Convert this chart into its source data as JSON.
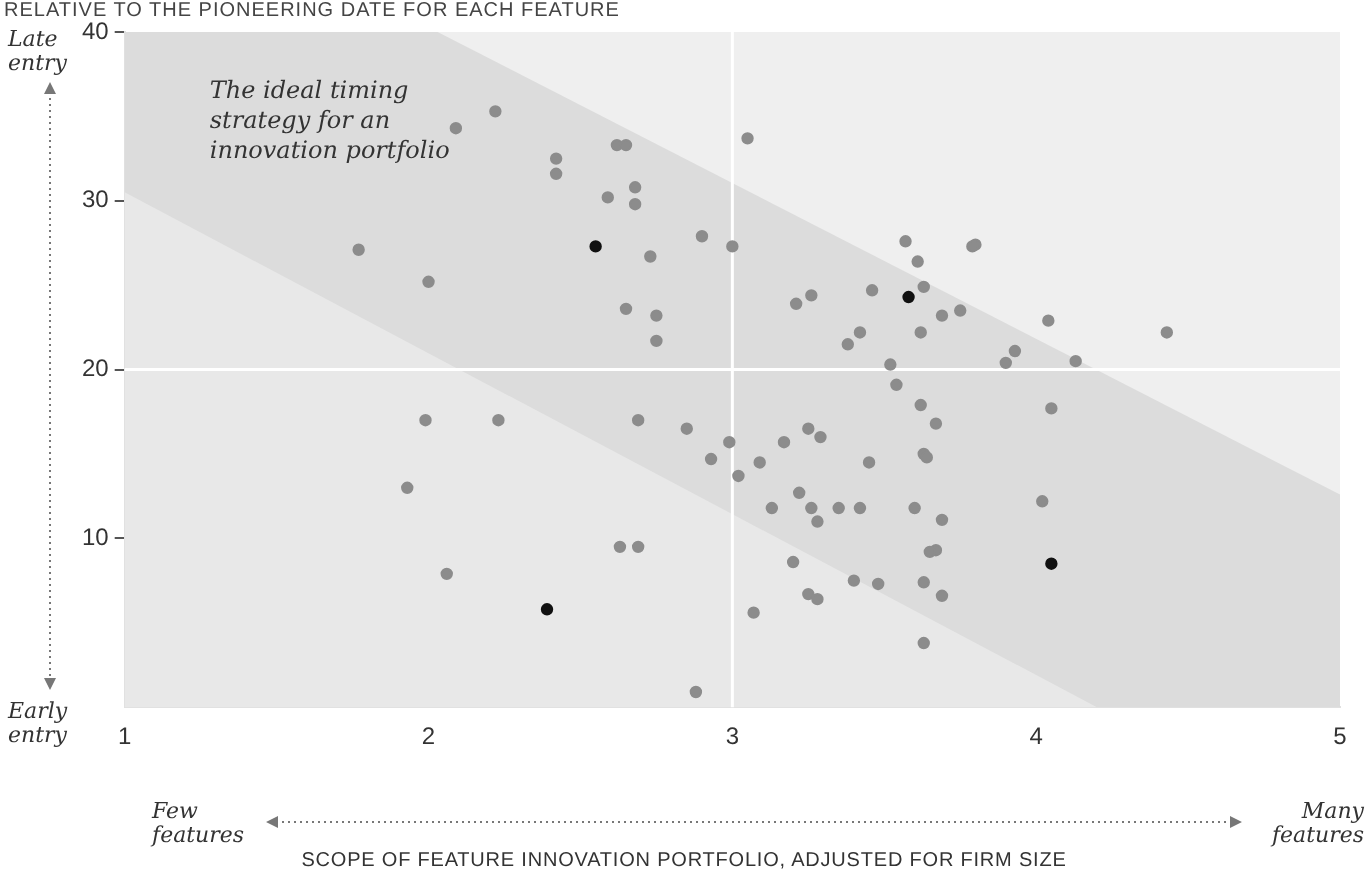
{
  "chart_data": {
    "type": "scatter",
    "title": "RELATIVE TO THE PIONEERING DATE FOR EACH FEATURE",
    "xlabel": "SCOPE OF FEATURE INNOVATION PORTFOLIO, ADJUSTED FOR FIRM SIZE",
    "annotations": [
      "The ideal timing strategy for an innovation portfolio",
      "Late entry",
      "Early entry",
      "Few features",
      "Many features"
    ],
    "series": [
      {
        "type": "area",
        "marker": "none",
        "color": "#dcdcdc",
        "x": [
          1,
          2.03,
          5
        ],
        "values": [
          40,
          40,
          12.6
        ]
      },
      {
        "type": "area",
        "marker": "none",
        "color": "#e8e8e8",
        "x": [
          1,
          4.2,
          5
        ],
        "values": [
          30.5,
          0,
          0
        ]
      },
      {
        "color": "#8c8c8c",
        "x": [
          2.09,
          2.22,
          2.42,
          2.42,
          2.62,
          2.65,
          2.59,
          2.68,
          2.68,
          1.77,
          2.73,
          2.0,
          2.65,
          2.75,
          2.75,
          1.99,
          2.23,
          2.69,
          3.05,
          2.9,
          3.0,
          3.57,
          3.8,
          3.79,
          3.61,
          3.63,
          3.46,
          3.26,
          3.21,
          3.75,
          3.69,
          4.04,
          4.43,
          3.62,
          3.42,
          3.38,
          3.93,
          3.9,
          4.13,
          3.52,
          3.54,
          3.62,
          4.05,
          3.67,
          3.25,
          2.85,
          1.93,
          2.63,
          2.69,
          2.06,
          2.99,
          2.93,
          3.29,
          3.17,
          3.02,
          3.09,
          3.45,
          3.63,
          3.64,
          3.22,
          3.13,
          3.26,
          3.28,
          3.35,
          3.42,
          3.6,
          3.69,
          4.02,
          3.67,
          3.65,
          3.2,
          3.4,
          3.48,
          3.63,
          3.69,
          3.25,
          3.28,
          3.07,
          3.63,
          2.88
        ],
        "values": [
          34.3,
          35.3,
          32.5,
          31.6,
          33.3,
          33.3,
          30.2,
          30.8,
          29.8,
          27.1,
          26.7,
          25.2,
          23.6,
          23.2,
          21.7,
          17.0,
          17.0,
          17.0,
          33.7,
          27.9,
          27.3,
          27.6,
          27.4,
          27.3,
          26.4,
          24.9,
          24.7,
          24.4,
          23.9,
          23.5,
          23.2,
          22.9,
          22.2,
          22.2,
          22.2,
          21.5,
          21.1,
          20.4,
          20.5,
          20.3,
          19.1,
          17.9,
          17.7,
          16.8,
          16.5,
          16.5,
          13.0,
          9.5,
          9.5,
          7.9,
          15.7,
          14.7,
          16.0,
          15.7,
          13.7,
          14.5,
          14.5,
          15.0,
          14.8,
          12.7,
          11.8,
          11.8,
          11.0,
          11.8,
          11.8,
          11.8,
          11.1,
          12.2,
          9.3,
          9.2,
          8.6,
          7.5,
          7.3,
          7.4,
          6.6,
          6.7,
          6.4,
          5.6,
          3.8,
          0.9
        ]
      },
      {
        "color": "#111111",
        "x": [
          2.55,
          3.58,
          2.39,
          4.05
        ],
        "values": [
          27.3,
          24.3,
          5.8,
          8.5
        ]
      }
    ],
    "xlim": [
      1,
      5
    ],
    "xticks": [
      1,
      2,
      3,
      4,
      5
    ],
    "ylim": [
      0,
      40
    ],
    "yticks": [
      10,
      20,
      30,
      40
    ],
    "ref_lines": [
      {
        "axis": "x",
        "value": 3,
        "color": "#ffffff"
      },
      {
        "axis": "y",
        "value": 20,
        "color": "#ffffff"
      }
    ],
    "marker": "circle"
  }
}
